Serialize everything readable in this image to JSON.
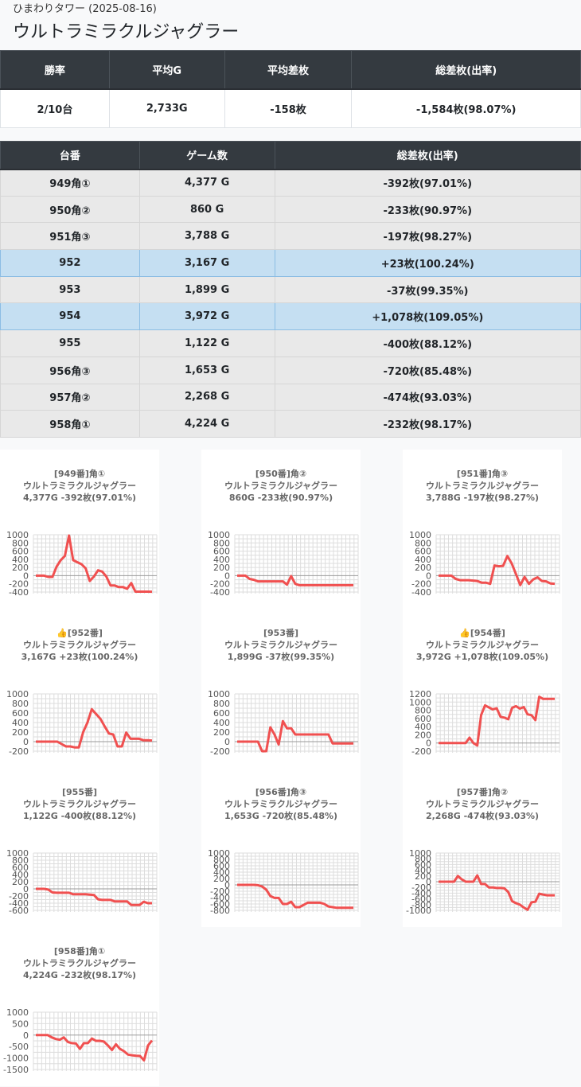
{
  "header": {
    "subtitle": "ひまわりタワー (2025-08-16)",
    "title": "ウルトラミラクルジャグラー"
  },
  "summary": {
    "headers": [
      "勝率",
      "平均G",
      "平均差枚",
      "総差枚(出率)"
    ],
    "values": [
      "2/10台",
      "2,733G",
      "-158枚",
      "-1,584枚(98.07%)"
    ]
  },
  "detail": {
    "headers": [
      "台番",
      "ゲーム数",
      "総差枚(出率)"
    ],
    "rows": [
      {
        "no": "949角①",
        "games": "4,377 G",
        "diff": "-392枚(97.01%)",
        "plus": false
      },
      {
        "no": "950角②",
        "games": "860 G",
        "diff": "-233枚(90.97%)",
        "plus": false
      },
      {
        "no": "951角③",
        "games": "3,788 G",
        "diff": "-197枚(98.27%)",
        "plus": false
      },
      {
        "no": "952",
        "games": "3,167 G",
        "diff": "+23枚(100.24%)",
        "plus": true
      },
      {
        "no": "953",
        "games": "1,899 G",
        "diff": "-37枚(99.35%)",
        "plus": false
      },
      {
        "no": "954",
        "games": "3,972 G",
        "diff": "+1,078枚(109.05%)",
        "plus": true
      },
      {
        "no": "955",
        "games": "1,122 G",
        "diff": "-400枚(88.12%)",
        "plus": false
      },
      {
        "no": "956角③",
        "games": "1,653 G",
        "diff": "-720枚(85.48%)",
        "plus": false
      },
      {
        "no": "957角②",
        "games": "2,268 G",
        "diff": "-474枚(93.03%)",
        "plus": false
      },
      {
        "no": "958角①",
        "games": "4,224 G",
        "diff": "-232枚(98.17%)",
        "plus": false
      }
    ]
  },
  "colors": {
    "line": "#f05050",
    "header_bg": "#343a40",
    "plus_row": "#c5dff2"
  },
  "chart_data": [
    {
      "type": "line",
      "title": [
        "[949番]角①",
        "ウルトラミラクルジャグラー",
        "4,377G -392枚(97.01%)"
      ],
      "ylim": [
        -400,
        1000
      ],
      "yticks": [
        1000,
        800,
        600,
        400,
        200,
        0,
        -200,
        -400
      ],
      "values": [
        0,
        0,
        0,
        -30,
        -30,
        220,
        380,
        480,
        980,
        380,
        330,
        280,
        180,
        -130,
        -20,
        130,
        100,
        -20,
        -240,
        -240,
        -280,
        -280,
        -320,
        -180,
        -390,
        -390,
        -390,
        -390,
        -392
      ]
    },
    {
      "type": "line",
      "title": [
        "[950番]角②",
        "ウルトラミラクルジャグラー",
        "860G -233枚(90.97%)"
      ],
      "ylim": [
        -400,
        1000
      ],
      "yticks": [
        1000,
        800,
        600,
        400,
        200,
        0,
        -200,
        -400
      ],
      "values": [
        0,
        0,
        0,
        -80,
        -100,
        -140,
        -140,
        -140,
        -140,
        -140,
        -140,
        -140,
        -220,
        -10,
        -200,
        -233,
        -233,
        -233,
        -233,
        -233,
        -233,
        -233,
        -233,
        -233,
        -233,
        -233,
        -233,
        -233,
        -233
      ]
    },
    {
      "type": "line",
      "title": [
        "[951番]角③",
        "ウルトラミラクルジャグラー",
        "3,788G -197枚(98.27%)"
      ],
      "ylim": [
        -400,
        1000
      ],
      "yticks": [
        1000,
        800,
        600,
        400,
        200,
        0,
        -200,
        -400
      ],
      "values": [
        0,
        0,
        0,
        0,
        -80,
        -110,
        -110,
        -110,
        -120,
        -130,
        -170,
        -170,
        -200,
        250,
        230,
        240,
        480,
        300,
        40,
        -230,
        -30,
        -200,
        -90,
        -40,
        -130,
        -140,
        -190,
        -197
      ]
    },
    {
      "type": "line",
      "title": [
        "[952番]",
        "ウルトラミラクルジャグラー",
        "3,167G +23枚(100.24%)"
      ],
      "icon": true,
      "ylim": [
        -200,
        1000
      ],
      "yticks": [
        1000,
        800,
        600,
        400,
        200,
        0,
        -200
      ],
      "values": [
        0,
        0,
        0,
        0,
        0,
        0,
        -50,
        -100,
        -100,
        -120,
        -120,
        200,
        400,
        680,
        580,
        480,
        320,
        170,
        150,
        -100,
        -100,
        190,
        60,
        60,
        60,
        30,
        30,
        23
      ]
    },
    {
      "type": "line",
      "title": [
        "[953番]",
        "ウルトラミラクルジャグラー",
        "1,899G -37枚(99.35%)"
      ],
      "ylim": [
        -200,
        1000
      ],
      "yticks": [
        1000,
        800,
        600,
        400,
        200,
        0,
        -200
      ],
      "values": [
        0,
        0,
        0,
        0,
        0,
        0,
        -200,
        -200,
        300,
        150,
        -60,
        430,
        280,
        280,
        150,
        150,
        150,
        150,
        150,
        150,
        150,
        150,
        150,
        -37,
        -37,
        -37,
        -37,
        -37,
        -37
      ]
    },
    {
      "type": "line",
      "title": [
        "[954番]",
        "ウルトラミラクルジャグラー",
        "3,972G +1,078枚(109.05%)"
      ],
      "icon": true,
      "ylim": [
        -200,
        1200
      ],
      "yticks": [
        1200,
        1000,
        800,
        600,
        400,
        200,
        0,
        -200
      ],
      "values": [
        0,
        0,
        0,
        0,
        0,
        0,
        0,
        0,
        130,
        0,
        -60,
        680,
        920,
        870,
        820,
        850,
        640,
        620,
        580,
        860,
        900,
        840,
        880,
        700,
        680,
        560,
        1130,
        1078,
        1078,
        1078,
        1078
      ]
    },
    {
      "type": "line",
      "title": [
        "[955番]",
        "ウルトラミラクルジャグラー",
        "1,122G -400枚(88.12%)"
      ],
      "ylim": [
        -600,
        1000
      ],
      "yticks": [
        1000,
        800,
        600,
        400,
        200,
        0,
        -200,
        -400,
        -600
      ],
      "values": [
        0,
        0,
        0,
        -20,
        -100,
        -110,
        -110,
        -110,
        -110,
        -150,
        -150,
        -150,
        -150,
        -160,
        -170,
        -290,
        -310,
        -310,
        -310,
        -350,
        -350,
        -350,
        -350,
        -450,
        -450,
        -450,
        -360,
        -400,
        -400
      ]
    },
    {
      "type": "line",
      "title": [
        "[956番]角③",
        "ウルトラミラクルジャグラー",
        "1,653G -720枚(85.48%)"
      ],
      "ylim": [
        -800,
        1000
      ],
      "yticks": [
        1000,
        800,
        600,
        400,
        200,
        0,
        -200,
        -400,
        -600,
        -800
      ],
      "values": [
        0,
        0,
        0,
        0,
        0,
        -10,
        -50,
        -150,
        -350,
        -410,
        -410,
        -600,
        -600,
        -530,
        -700,
        -700,
        -630,
        -560,
        -560,
        -560,
        -560,
        -600,
        -680,
        -700,
        -720,
        -720,
        -720,
        -720,
        -720
      ]
    },
    {
      "type": "line",
      "title": [
        "[957番]角②",
        "ウルトラミラクルジャグラー",
        "2,268G -474枚(93.03%)"
      ],
      "ylim": [
        -1000,
        1000
      ],
      "yticks": [
        1000,
        800,
        600,
        400,
        200,
        0,
        -200,
        -400,
        -600,
        -800,
        -1000
      ],
      "values": [
        0,
        0,
        0,
        0,
        0,
        200,
        80,
        0,
        0,
        0,
        220,
        -80,
        -80,
        -200,
        -200,
        -220,
        -220,
        -230,
        -360,
        -680,
        -750,
        -800,
        -900,
        -980,
        -720,
        -700,
        -420,
        -450,
        -474,
        -474,
        -474
      ]
    },
    {
      "type": "line",
      "title": [
        "[958番]角①",
        "ウルトラミラクルジャグラー",
        "4,224G -232枚(98.17%)"
      ],
      "ylim": [
        -1500,
        1000
      ],
      "yticks": [
        1000,
        500,
        0,
        -500,
        -1000,
        -1500
      ],
      "values": [
        0,
        0,
        0,
        0,
        -100,
        -170,
        -200,
        -100,
        -300,
        -350,
        -360,
        -600,
        -350,
        -350,
        -150,
        -250,
        -250,
        -280,
        -450,
        -650,
        -400,
        -600,
        -700,
        -850,
        -880,
        -900,
        -910,
        -1100,
        -450,
        -232
      ]
    }
  ]
}
